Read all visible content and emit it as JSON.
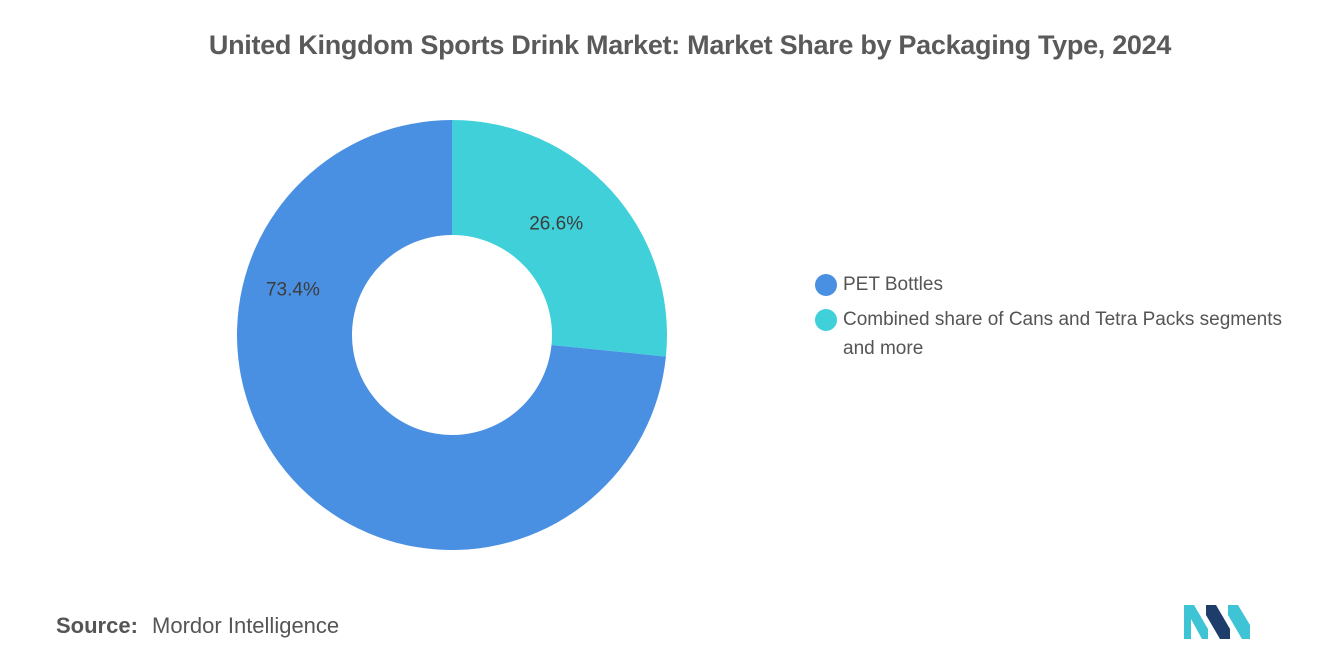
{
  "colors": {
    "pet": "#4a90e2",
    "cans": "#40d0d9",
    "logo_dark": "#1e3d6b",
    "logo_light": "#3fc4d6"
  },
  "chart_data": {
    "type": "pie",
    "variant": "donut",
    "title": "United Kingdom Sports Drink Market: Market Share by Packaging Type, 2024",
    "series": [
      {
        "name": "PET Bottles",
        "value": 73.4,
        "label": "73.4%",
        "color": "#4a90e2"
      },
      {
        "name": "Combined share of Cans and Tetra Packs segments and more",
        "value": 26.6,
        "label": "26.6%",
        "color": "#40d0d9"
      }
    ],
    "legend": [
      {
        "label": "PET Bottles",
        "color": "#4a90e2"
      },
      {
        "label": "Combined share of Cans and Tetra Packs segments and more",
        "color": "#40d0d9"
      }
    ],
    "legend_position": "right",
    "start": "top",
    "direction": "clockwise"
  },
  "source": {
    "label": "Source:",
    "value": "Mordor Intelligence"
  },
  "logo": {
    "name": "mordor-intelligence-logo"
  }
}
